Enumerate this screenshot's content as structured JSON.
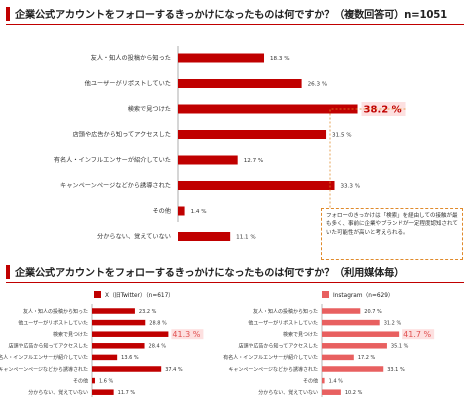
{
  "main": {
    "title": "企業公式アカウントをフォローするきっかけになったものは何ですか？（複数回答可）n=1051"
  },
  "callout": {
    "text": "フォローのきっかけは「検索」を経由しての接触が最も多く、事前に企業やブランドが一定程度認知されていた可能性が高いと考えられる。"
  },
  "sub": {
    "title": "企業公式アカウントをフォローするきっかけになったものは何ですか？（利用媒体毎）"
  },
  "colors": {
    "main_bar": "#c00000",
    "x_bar": "#c00000",
    "insta_bar": "#e86060",
    "callout_border": "#e08a2b"
  },
  "chart_data": [
    {
      "type": "bar",
      "orientation": "horizontal",
      "title": "企業公式アカウントをフォローするきっかけになったものは何ですか？（複数回答可）n=1051",
      "categories": [
        "友人・知人の投稿から知った",
        "他ユーザーがリポストしていた",
        "検索で見つけた",
        "店頭や広告から知ってアクセスした",
        "有名人・インフルエンサーが紹介していた",
        "キャンペーンページなどから誘導された",
        "その他",
        "分からない、覚えていない"
      ],
      "values": [
        18.3,
        26.3,
        38.2,
        31.5,
        12.7,
        33.3,
        1.4,
        11.1
      ],
      "unit": "%",
      "highlight_index": 2
    },
    {
      "type": "bar",
      "orientation": "horizontal",
      "series": [
        {
          "name": "X（旧Twitter）（n=617）",
          "values": [
            23.2,
            28.8,
            41.3,
            28.4,
            13.6,
            37.4,
            1.6,
            11.7
          ]
        }
      ],
      "categories": [
        "友人・知人の投稿から知った",
        "他ユーザーがリポストしていた",
        "検索で見つけた",
        "店頭や広告から知ってアクセスした",
        "有名人・インフルエンサーが紹介していた",
        "キャンペーンページなどから誘導された",
        "その他",
        "分からない、覚えていない"
      ],
      "unit": "%",
      "highlight_index": 2
    },
    {
      "type": "bar",
      "orientation": "horizontal",
      "series": [
        {
          "name": "Instagram（n=629）",
          "values": [
            20.7,
            31.2,
            41.7,
            35.1,
            17.2,
            33.1,
            1.4,
            10.2
          ]
        }
      ],
      "categories": [
        "友人・知人の投稿から知った",
        "他ユーザーがリポストしていた",
        "検索で見つけた",
        "店頭や広告から知ってアクセスした",
        "有名人・インフルエンサーが紹介していた",
        "キャンペーンページなどから誘導された",
        "その他",
        "分からない、覚えていない"
      ],
      "unit": "%",
      "highlight_index": 2
    }
  ]
}
